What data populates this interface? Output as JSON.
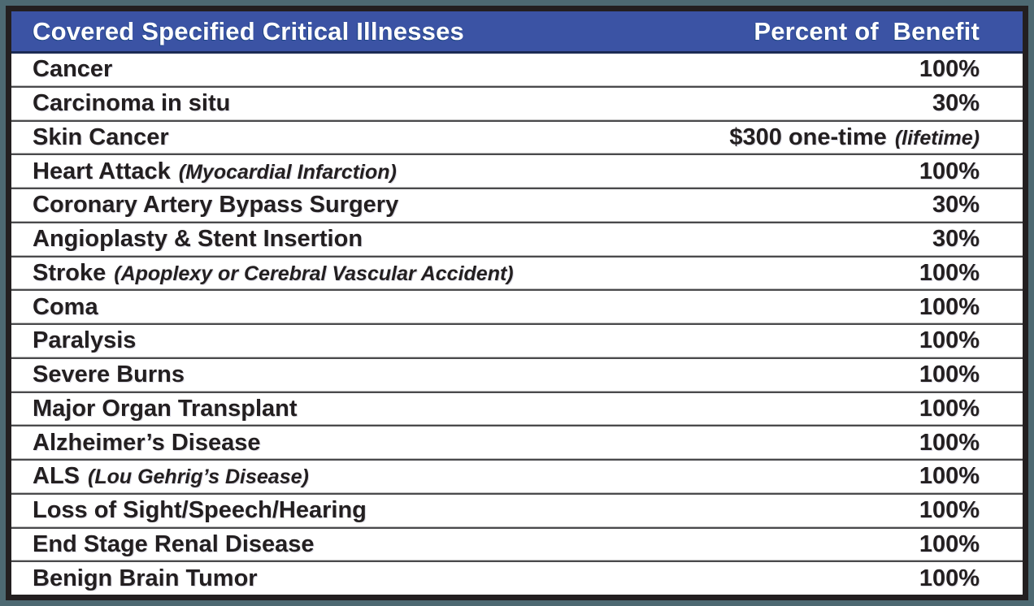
{
  "colors": {
    "page_background": "#4d6972",
    "frame_border": "#231f20",
    "header_background": "#3b53a4",
    "header_text": "#ffffff",
    "row_text": "#231f20",
    "row_separator": "#4a4a4c"
  },
  "header": {
    "illness_column_label": "Covered Specified Critical Illnesses",
    "benefit_column_label": "Percent of  Benefit"
  },
  "rows": [
    {
      "name": "Cancer",
      "note": "",
      "value": "100%",
      "value_note": ""
    },
    {
      "name": "Carcinoma in situ",
      "note": "",
      "value": "30%",
      "value_note": ""
    },
    {
      "name": "Skin Cancer",
      "note": "",
      "value": "$300 one-time",
      "value_note": "(lifetime)"
    },
    {
      "name": "Heart Attack",
      "note": "(Myocardial Infarction)",
      "value": "100%",
      "value_note": ""
    },
    {
      "name": "Coronary Artery Bypass Surgery",
      "note": "",
      "value": "30%",
      "value_note": ""
    },
    {
      "name": "Angioplasty & Stent Insertion",
      "note": "",
      "value": "30%",
      "value_note": ""
    },
    {
      "name": "Stroke",
      "note": "(Apoplexy or Cerebral Vascular Accident)",
      "value": "100%",
      "value_note": ""
    },
    {
      "name": "Coma",
      "note": "",
      "value": "100%",
      "value_note": ""
    },
    {
      "name": "Paralysis",
      "note": "",
      "value": "100%",
      "value_note": ""
    },
    {
      "name": "Severe Burns",
      "note": "",
      "value": "100%",
      "value_note": ""
    },
    {
      "name": "Major Organ Transplant",
      "note": "",
      "value": "100%",
      "value_note": ""
    },
    {
      "name": "Alzheimer’s Disease",
      "note": "",
      "value": "100%",
      "value_note": ""
    },
    {
      "name": "ALS",
      "note": "(Lou Gehrig’s Disease)",
      "value": "100%",
      "value_note": ""
    },
    {
      "name": "Loss of Sight/Speech/Hearing",
      "note": "",
      "value": "100%",
      "value_note": ""
    },
    {
      "name": "End Stage Renal Disease",
      "note": "",
      "value": "100%",
      "value_note": ""
    },
    {
      "name": "Benign Brain Tumor",
      "note": "",
      "value": "100%",
      "value_note": ""
    }
  ]
}
